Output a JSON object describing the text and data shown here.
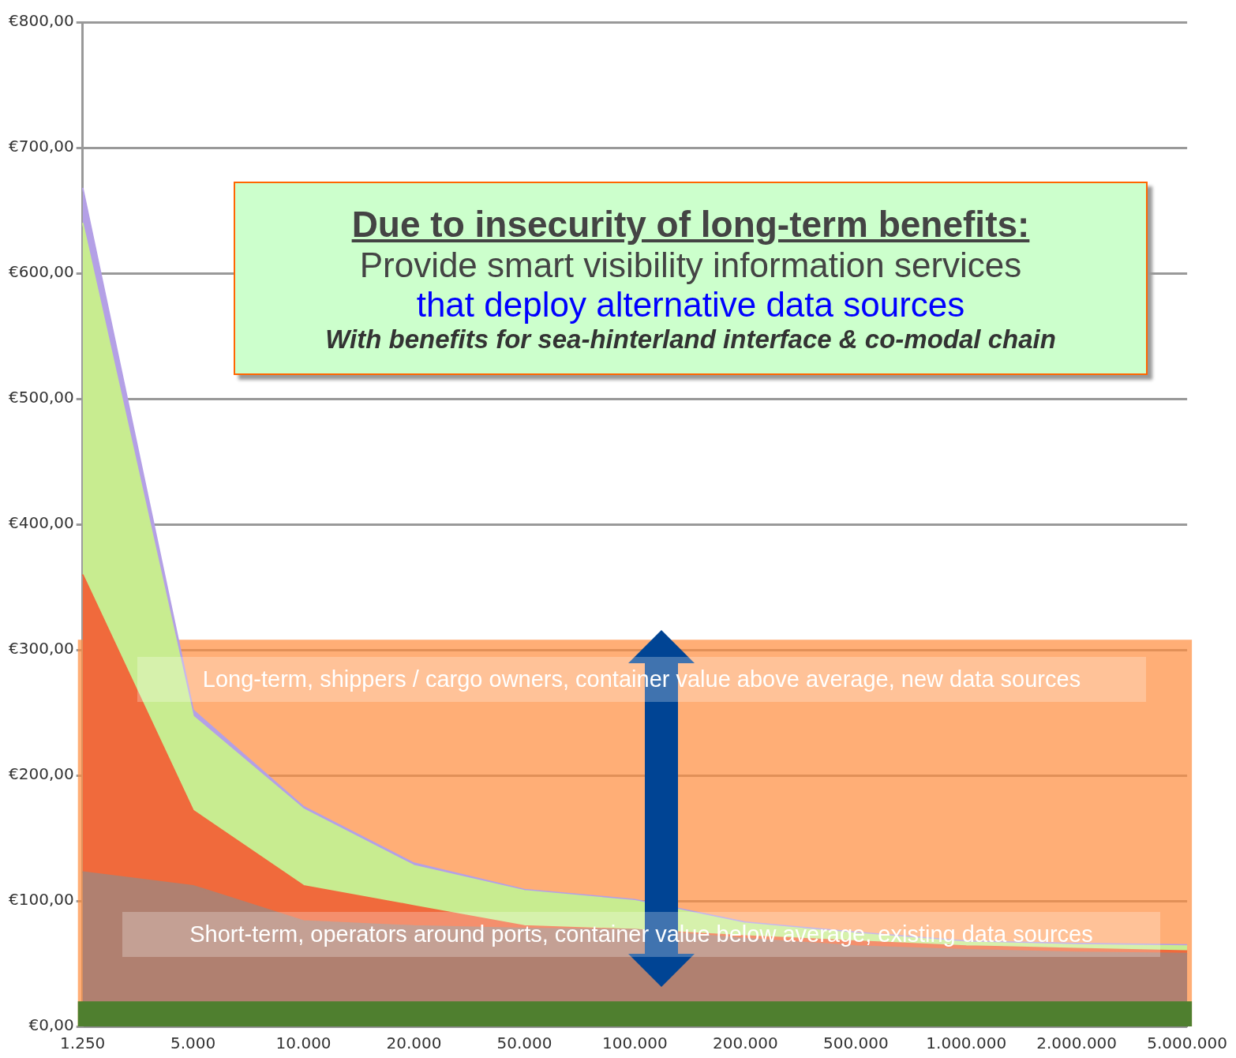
{
  "chart_data": {
    "type": "area",
    "categories": [
      "1.250",
      "5.000",
      "10.000",
      "20.000",
      "50.000",
      "100.000",
      "200.000",
      "500.000",
      "1.000.000",
      "2.000.000",
      "5.000.000"
    ],
    "series": [
      {
        "color": "#b4a0e6",
        "values": [
          668,
          252,
          175,
          130,
          109,
          101,
          83,
          75,
          68,
          66,
          65
        ]
      },
      {
        "color": "#c8ec90",
        "values": [
          640,
          247,
          173,
          128,
          108,
          100,
          82,
          74,
          67,
          65,
          64
        ]
      },
      {
        "color": "#f06a3c",
        "values": [
          360,
          172,
          112,
          96,
          80,
          77,
          72,
          68,
          64,
          62,
          60
        ]
      },
      {
        "color": "#b08070",
        "values": [
          123,
          112,
          84,
          80,
          78,
          77,
          70,
          64,
          61,
          59,
          58
        ]
      }
    ],
    "ylim": [
      0,
      800
    ],
    "yticks": [
      {
        "value": 0,
        "label": "€0,00"
      },
      {
        "value": 100,
        "label": "€100,00"
      },
      {
        "value": 200,
        "label": "€200,00"
      },
      {
        "value": 300,
        "label": "€300,00"
      },
      {
        "value": 400,
        "label": "€400,00"
      },
      {
        "value": 500,
        "label": "€500,00"
      },
      {
        "value": 600,
        "label": "€600,00"
      },
      {
        "value": 700,
        "label": "€700,00"
      },
      {
        "value": 800,
        "label": "€800,00"
      }
    ],
    "grid": "y",
    "bands": [
      {
        "axis": "y",
        "from": 0,
        "to": 308,
        "color": "#ff8c3c"
      },
      {
        "axis": "y",
        "from": 0,
        "to": 20,
        "color": "#4f7f2f"
      }
    ],
    "annotations": [
      "Due to insecurity of long-term benefits:",
      "Provide smart visibility information services",
      "that deploy alternative data sources",
      "With benefits for sea-hinterland interface & co-modal chain",
      "Long-term, shippers / cargo owners, container value above average, new data sources",
      "Short-term, operators around ports, container value below average, existing data sources"
    ]
  }
}
